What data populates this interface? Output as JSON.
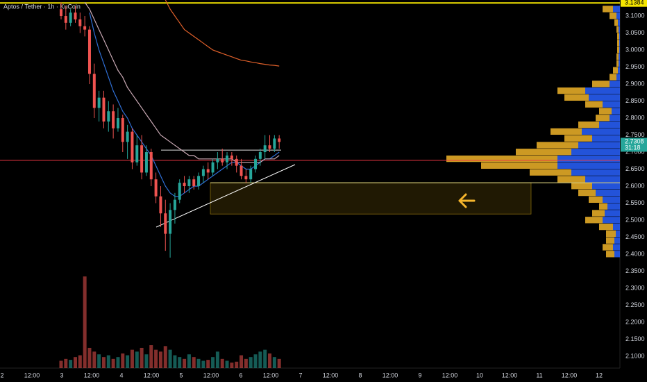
{
  "chart_data": {
    "type": "candlestick",
    "title": "Aptos / Tether · 1h · KuCoin",
    "ylim": [
      2.0653,
      3.147
    ],
    "yticks": [
      {
        "value": 3.1,
        "label": "3.1000"
      },
      {
        "value": 3.05,
        "label": "3.0500"
      },
      {
        "value": 3.0,
        "label": "3.0000"
      },
      {
        "value": 2.95,
        "label": "2.9500"
      },
      {
        "value": 2.9,
        "label": "2.9000"
      },
      {
        "value": 2.85,
        "label": "2.8500"
      },
      {
        "value": 2.8,
        "label": "2.8000"
      },
      {
        "value": 2.75,
        "label": "2.7500"
      },
      {
        "value": 2.7,
        "label": "2.7000"
      },
      {
        "value": 2.65,
        "label": "2.6500"
      },
      {
        "value": 2.6,
        "label": "2.6000"
      },
      {
        "value": 2.55,
        "label": "2.5500"
      },
      {
        "value": 2.5,
        "label": "2.5000"
      },
      {
        "value": 2.45,
        "label": "2.4500"
      },
      {
        "value": 2.4,
        "label": "2.4000"
      },
      {
        "value": 2.35,
        "label": "2.3500"
      },
      {
        "value": 2.3,
        "label": "2.3000"
      },
      {
        "value": 2.25,
        "label": "2.2500"
      },
      {
        "value": 2.2,
        "label": "2.2000"
      },
      {
        "value": 2.15,
        "label": "2.1500"
      },
      {
        "value": 2.1,
        "label": "2.1000"
      }
    ],
    "x_labels": [
      "2",
      "12:00",
      "3",
      "12:00",
      "4",
      "12:00",
      "5",
      "12:00",
      "6",
      "12:00",
      "7",
      "12:00",
      "8",
      "12:00",
      "9",
      "12:00",
      "10",
      "12:00",
      "11",
      "12:00",
      "12"
    ],
    "up_color": "#26a69a",
    "down_color": "#ef5350",
    "open": [
      3.12,
      3.1,
      3.08,
      3.11,
      3.09,
      3.07,
      3.06,
      2.93,
      2.83,
      2.86,
      2.79,
      2.82,
      2.77,
      2.8,
      2.73,
      2.76,
      2.67,
      2.72,
      2.64,
      2.7,
      2.62,
      2.57,
      2.52,
      2.46,
      2.53,
      2.56,
      2.61,
      2.6,
      2.62,
      2.6,
      2.63,
      2.65,
      2.64,
      2.67,
      2.68,
      2.67,
      2.69,
      2.68,
      2.66,
      2.63,
      2.62,
      2.65,
      2.68,
      2.7,
      2.72,
      2.71,
      2.74
    ],
    "high": [
      3.14,
      3.13,
      3.12,
      3.13,
      3.11,
      3.1,
      3.07,
      2.96,
      2.88,
      2.88,
      2.85,
      2.84,
      2.83,
      2.81,
      2.78,
      2.77,
      2.75,
      2.75,
      2.72,
      2.71,
      2.64,
      2.6,
      2.56,
      2.55,
      2.58,
      2.62,
      2.63,
      2.63,
      2.63,
      2.64,
      2.66,
      2.67,
      2.68,
      2.7,
      2.71,
      2.7,
      2.7,
      2.69,
      2.68,
      2.65,
      2.66,
      2.69,
      2.71,
      2.75,
      2.75,
      2.75,
      2.75
    ],
    "low": [
      3.09,
      3.06,
      3.07,
      3.08,
      3.05,
      3.04,
      2.9,
      2.8,
      2.79,
      2.77,
      2.76,
      2.74,
      2.76,
      2.7,
      2.68,
      2.65,
      2.66,
      2.62,
      2.63,
      2.6,
      2.55,
      2.48,
      2.41,
      2.39,
      2.49,
      2.55,
      2.58,
      2.58,
      2.59,
      2.59,
      2.61,
      2.62,
      2.63,
      2.65,
      2.66,
      2.65,
      2.66,
      2.64,
      2.62,
      2.61,
      2.61,
      2.64,
      2.66,
      2.68,
      2.7,
      2.7,
      2.71
    ],
    "close": [
      3.1,
      3.08,
      3.11,
      3.09,
      3.07,
      3.06,
      2.93,
      2.83,
      2.86,
      2.79,
      2.82,
      2.77,
      2.8,
      2.73,
      2.76,
      2.67,
      2.72,
      2.64,
      2.7,
      2.62,
      2.57,
      2.52,
      2.46,
      2.53,
      2.56,
      2.61,
      2.6,
      2.62,
      2.6,
      2.63,
      2.65,
      2.64,
      2.67,
      2.68,
      2.67,
      2.69,
      2.68,
      2.66,
      2.63,
      2.62,
      2.65,
      2.68,
      2.7,
      2.72,
      2.71,
      2.74,
      2.73
    ],
    "volume": [
      8,
      10,
      9,
      12,
      14,
      100,
      22,
      18,
      15,
      12,
      14,
      10,
      12,
      16,
      14,
      20,
      18,
      22,
      15,
      25,
      20,
      18,
      24,
      20,
      14,
      12,
      10,
      15,
      12,
      10,
      8,
      9,
      12,
      18,
      10,
      8,
      6,
      7,
      14,
      10,
      12,
      15,
      18,
      20,
      16,
      12,
      10
    ],
    "volume_lim": [
      0,
      100
    ],
    "moving_averages": [
      {
        "color": "#2f6fd6",
        "values": [
          null,
          null,
          null,
          null,
          null,
          null,
          3.11,
          3.05,
          3.0,
          2.96,
          2.92,
          2.88,
          2.85,
          2.82,
          2.8,
          2.77,
          2.75,
          2.73,
          2.71,
          2.69,
          2.66,
          2.63,
          2.6,
          2.58,
          2.57,
          2.57,
          2.58,
          2.59,
          2.6,
          2.6,
          2.61,
          2.62,
          2.63,
          2.64,
          2.65,
          2.66,
          2.67,
          2.67,
          2.66,
          2.65,
          2.65,
          2.66,
          2.67,
          2.68,
          2.68,
          2.69,
          2.7
        ]
      },
      {
        "color": "#c9a9b4",
        "values": [
          null,
          null,
          null,
          null,
          null,
          3.14,
          3.12,
          3.09,
          3.06,
          3.03,
          3.0,
          2.97,
          2.94,
          2.92,
          2.89,
          2.87,
          2.85,
          2.83,
          2.81,
          2.79,
          2.77,
          2.75,
          2.74,
          2.73,
          2.72,
          2.71,
          2.7,
          2.69,
          2.69,
          2.68,
          2.68,
          2.68,
          2.68,
          2.68,
          2.68,
          2.68,
          2.68,
          2.67,
          2.67,
          2.67,
          2.67,
          2.67,
          2.67,
          2.68,
          2.68,
          2.68,
          2.69
        ]
      },
      {
        "color": "#e0602a",
        "values": [
          null,
          null,
          null,
          null,
          null,
          null,
          null,
          null,
          null,
          null,
          null,
          null,
          null,
          null,
          null,
          null,
          null,
          null,
          null,
          null,
          null,
          null,
          3.147,
          3.12,
          3.1,
          3.08,
          3.06,
          3.05,
          3.04,
          3.03,
          3.02,
          3.01,
          3.0,
          2.995,
          2.99,
          2.985,
          2.98,
          2.975,
          2.97,
          2.968,
          2.965,
          2.963,
          2.96,
          2.958,
          2.956,
          2.955,
          2.953
        ]
      }
    ],
    "price_lines": [
      {
        "value": 3.1384,
        "color": "#f5e600"
      },
      {
        "value": 2.706,
        "color": "#e0e0e0"
      },
      {
        "value": 2.676,
        "color": "#f23645"
      },
      {
        "value": 2.61,
        "color": "#f0e68c"
      }
    ],
    "zone": {
      "top": 2.61,
      "bottom": 2.518,
      "color": "#f5c518"
    },
    "price_badges": [
      {
        "value": 3.1384,
        "label": "3.1384",
        "color": "#f5e600",
        "text_color": "#000"
      },
      {
        "value": 2.7308,
        "label": "2.7308",
        "countdown": "31:18",
        "color": "#26a69a",
        "text_color": "#fff"
      }
    ],
    "profile_prices": [
      2.4,
      2.42,
      2.44,
      2.46,
      2.48,
      2.5,
      2.52,
      2.54,
      2.56,
      2.58,
      2.6,
      2.62,
      2.64,
      2.66,
      2.68,
      2.7,
      2.72,
      2.74,
      2.76,
      2.78,
      2.8,
      2.82,
      2.84,
      2.86,
      2.88,
      2.9,
      2.92,
      2.94,
      2.96,
      2.98,
      3.0,
      3.02,
      3.04,
      3.06,
      3.08,
      3.1,
      3.12
    ],
    "profile_series": [
      {
        "name": "up",
        "color": "#2962ff",
        "values": [
          8,
          10,
          8,
          6,
          10,
          25,
          22,
          18,
          25,
          35,
          40,
          50,
          70,
          90,
          90,
          70,
          60,
          40,
          55,
          30,
          15,
          12,
          25,
          45,
          50,
          15,
          5,
          3,
          2,
          2,
          1,
          1,
          1,
          2,
          3,
          5,
          10
        ]
      },
      {
        "name": "down",
        "color": "#f0b429",
        "values": [
          12,
          15,
          12,
          14,
          20,
          25,
          18,
          12,
          20,
          25,
          30,
          40,
          60,
          110,
          160,
          80,
          60,
          40,
          45,
          30,
          20,
          18,
          25,
          35,
          40,
          25,
          10,
          7,
          3,
          3,
          3,
          3,
          3,
          3,
          5,
          10,
          15
        ]
      }
    ]
  }
}
